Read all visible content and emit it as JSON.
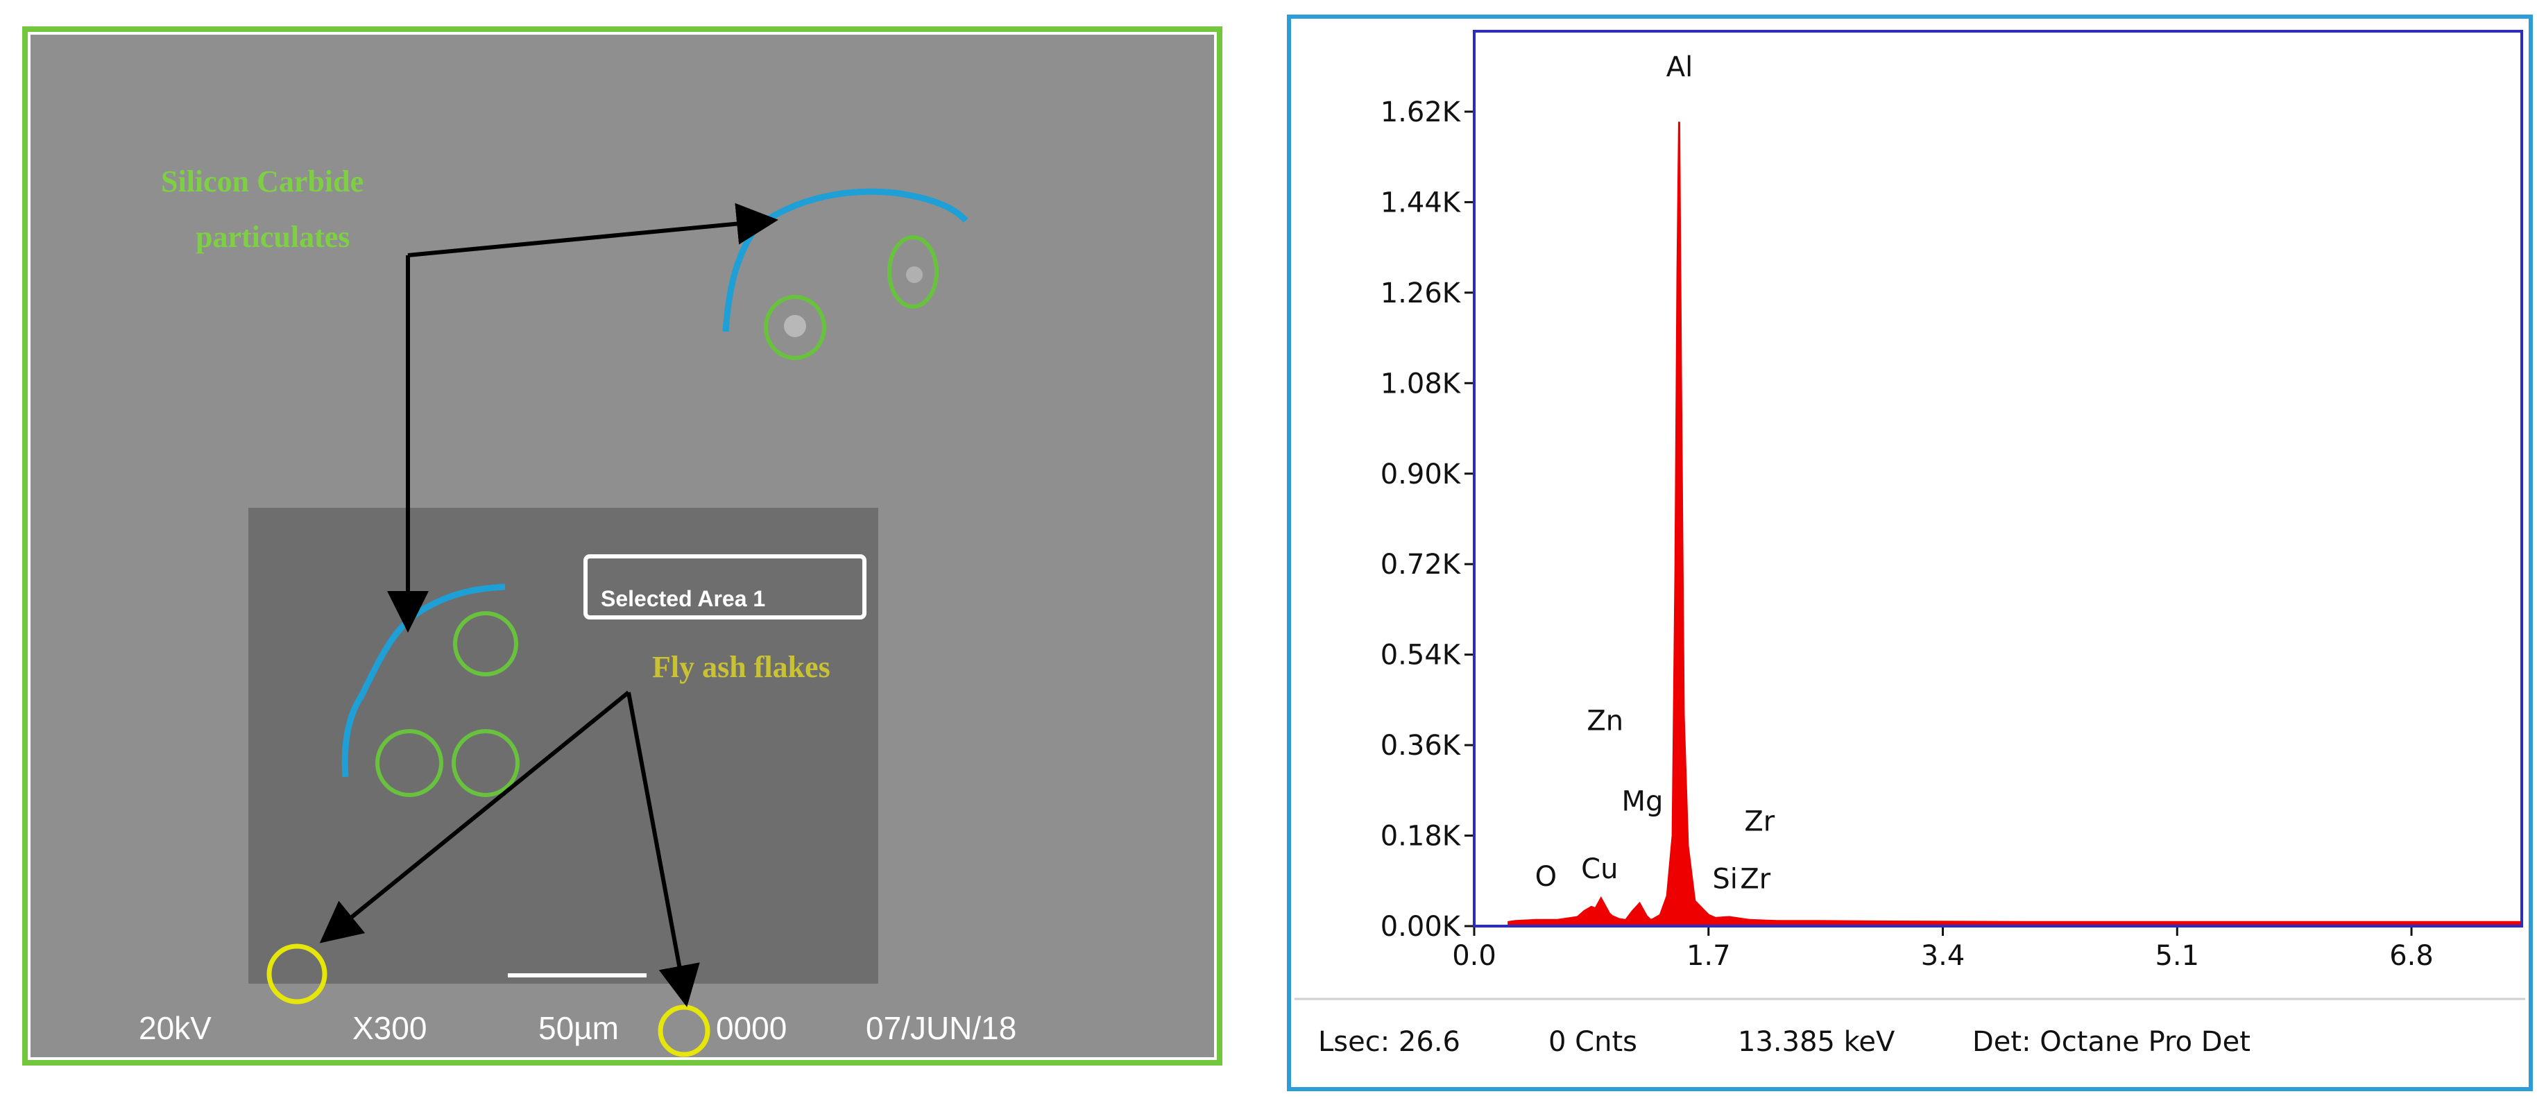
{
  "colors": {
    "sem_frame": "#73c73c",
    "sem_background": "#8f8f8f",
    "selected_region": "#6e6e6e",
    "boundary_curve": "#1e9fd6",
    "sic_marker": "#69c23e",
    "flyash_marker": "#e6e60a",
    "flyash_text": "#c8c234",
    "sic_text": "#7ecf44",
    "eds_frame": "#2e9cd8",
    "plot_border": "#2b2bc9",
    "spectrum": "#ee0000"
  },
  "sem": {
    "annotation_sic": [
      "Silicon Carbide",
      "particulates"
    ],
    "annotation_flyash": "Fly ash flakes",
    "selected_area_label": "Selected Area 1",
    "info_bar": {
      "voltage": "20kV",
      "magnification": "X300",
      "scale": "50µm",
      "number": "0000",
      "date": "07/JUN/18"
    }
  },
  "chart_data": {
    "type": "line",
    "title": "",
    "xlabel": "",
    "ylabel": "",
    "xlim": [
      0.0,
      7.6
    ],
    "ylim": [
      0,
      1780
    ],
    "x_ticks": [
      "0.0",
      "1.7",
      "3.4",
      "5.1",
      "6.8"
    ],
    "y_ticks": [
      "0.00K",
      "0.18K",
      "0.36K",
      "0.54K",
      "0.72K",
      "0.90K",
      "1.08K",
      "1.26K",
      "1.44K",
      "1.62K"
    ],
    "x_tick_values": [
      0.0,
      1.7,
      3.4,
      5.1,
      6.8
    ],
    "y_tick_values": [
      0,
      180,
      360,
      540,
      720,
      900,
      1080,
      1260,
      1440,
      1620
    ],
    "series": [
      {
        "x": [
          0.25,
          0.3,
          0.45,
          0.6,
          0.75,
          0.8,
          0.85,
          0.88,
          0.92,
          0.95,
          0.98,
          1.0,
          1.05,
          1.1,
          1.15,
          1.2,
          1.25,
          1.28,
          1.3,
          1.35,
          1.4,
          1.44,
          1.46,
          1.475,
          1.487,
          1.5,
          1.52,
          1.55,
          1.6,
          1.7,
          1.75,
          1.85,
          2.0,
          2.2,
          2.5,
          3.0,
          4.0,
          5.0,
          6.0,
          7.0,
          7.6
        ],
        "y": [
          8,
          10,
          12,
          12,
          18,
          30,
          38,
          35,
          55,
          40,
          25,
          20,
          14,
          12,
          30,
          45,
          20,
          12,
          14,
          22,
          60,
          180,
          700,
          1300,
          1600,
          1100,
          420,
          160,
          50,
          22,
          16,
          18,
          12,
          10,
          10,
          9,
          8,
          8,
          8,
          8,
          8
        ]
      }
    ],
    "element_labels": [
      {
        "text": "Al",
        "x": 1.49,
        "y": 1690
      },
      {
        "text": "Zn",
        "x": 0.95,
        "y": 390
      },
      {
        "text": "Mg",
        "x": 1.22,
        "y": 230
      },
      {
        "text": "Zr",
        "x": 2.07,
        "y": 190
      },
      {
        "text": "O",
        "x": 0.52,
        "y": 80
      },
      {
        "text": "Cu",
        "x": 0.91,
        "y": 95
      },
      {
        "text": "Si",
        "x": 1.82,
        "y": 75
      },
      {
        "text": "Zr",
        "x": 2.04,
        "y": 75
      }
    ]
  },
  "eds_status": {
    "lsec": "Lsec: 26.6",
    "counts": "0 Cnts",
    "energy": "13.385 keV",
    "detector": "Det: Octane Pro Det"
  }
}
